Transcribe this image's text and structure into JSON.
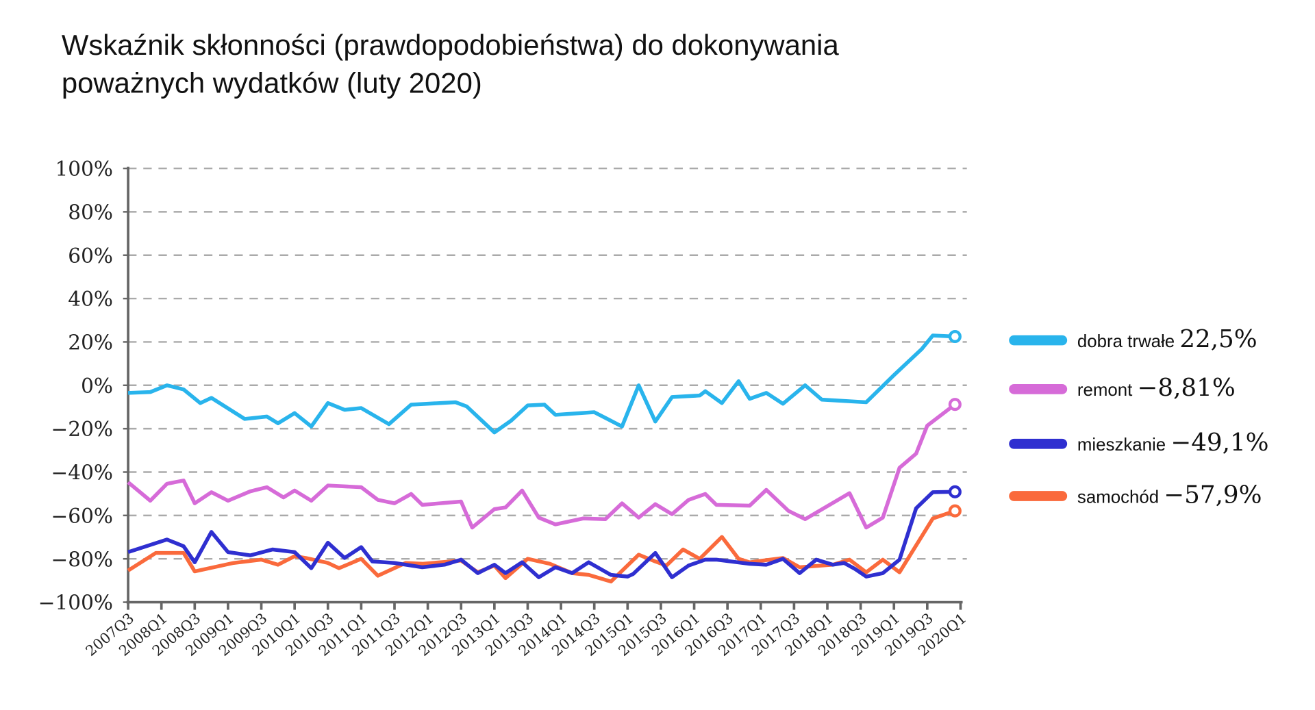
{
  "chart_data": {
    "type": "line",
    "title": "Wskaźnik skłonności (prawdopodobieństwa) do dokonywania poważnych wydatków (luty 2020)",
    "title_lines": [
      "Wskaźnik skłonności (prawdopodobieństwa) do dokonywania",
      "poważnych wydatków (luty 2020)"
    ],
    "xlabel": "",
    "ylabel": "",
    "ylim": [
      -100,
      100
    ],
    "xlim": [
      "2007-07",
      "2020-01"
    ],
    "grid": true,
    "grid_style": "dashed horizontal",
    "legend_placement": "right",
    "y_ticks": [
      100,
      80,
      60,
      40,
      20,
      0,
      -20,
      -40,
      -60,
      -80,
      -100
    ],
    "y_tick_labels": [
      "100%",
      "80%",
      "60%",
      "40%",
      "20%",
      "0%",
      "−20%",
      "−40%",
      "−60%",
      "−80%",
      "−100%"
    ],
    "x_tick_labels": [
      "2007Q3",
      "2008Q1",
      "2008Q3",
      "2009Q1",
      "2009Q3",
      "2010Q1",
      "2010Q3",
      "2011Q1",
      "2011Q3",
      "2012Q1",
      "2012Q3",
      "2013Q1",
      "2013Q3",
      "2014Q1",
      "2014Q3",
      "2015Q1",
      "2015Q3",
      "2016Q1",
      "2016Q3",
      "2017Q1",
      "2017Q3",
      "2018Q1",
      "2018Q3",
      "2019Q1",
      "2019Q3",
      "2020Q1"
    ],
    "series": [
      {
        "name": "dobra trwałe",
        "last_value_label": "22,5%",
        "color": "#29b4ec",
        "x": [
          "2007-07",
          "2007-11",
          "2008-02",
          "2008-05",
          "2008-08",
          "2008-10",
          "2009-04",
          "2009-08",
          "2009-10",
          "2010-01",
          "2010-04",
          "2010-07",
          "2010-10",
          "2011-01",
          "2011-06",
          "2011-10",
          "2012-06",
          "2012-08",
          "2013-01",
          "2013-04",
          "2013-07",
          "2013-10",
          "2013-12",
          "2014-07",
          "2014-12",
          "2015-03",
          "2015-06",
          "2015-09",
          "2016-02",
          "2016-03",
          "2016-06",
          "2016-09",
          "2016-11",
          "2017-02",
          "2017-05",
          "2017-09",
          "2017-12",
          "2018-08",
          "2019-01",
          "2019-06",
          "2019-08",
          "2019-12"
        ],
        "y": [
          -3.5,
          -3.1,
          0,
          -1.9,
          -8.2,
          -5.8,
          -15.5,
          -14.4,
          -17.5,
          -12.8,
          -19,
          -8.2,
          -11.3,
          -10.5,
          -17.9,
          -8.9,
          -7.8,
          -9.7,
          -21.7,
          -16.3,
          -9.3,
          -8.9,
          -13.6,
          -12.4,
          -19,
          0,
          -16.7,
          -5.4,
          -4.7,
          -2.7,
          -8.2,
          1.9,
          -6.2,
          -3.5,
          -8.5,
          0,
          -6.6,
          -7.8,
          4.7,
          16.7,
          23,
          22.5
        ]
      },
      {
        "name": "remont",
        "last_value_label": "−8,81%",
        "color": "#d66bd8",
        "x": [
          "2007-07",
          "2007-11",
          "2008-02",
          "2008-05",
          "2008-07",
          "2008-10",
          "2009-01",
          "2009-05",
          "2009-08",
          "2009-11",
          "2010-01",
          "2010-04",
          "2010-07",
          "2011-01",
          "2011-04",
          "2011-07",
          "2011-10",
          "2011-12",
          "2012-07",
          "2012-09",
          "2013-01",
          "2013-03",
          "2013-06",
          "2013-09",
          "2013-12",
          "2014-05",
          "2014-09",
          "2014-12",
          "2015-03",
          "2015-06",
          "2015-09",
          "2015-12",
          "2016-03",
          "2016-05",
          "2016-11",
          "2017-02",
          "2017-06",
          "2017-09",
          "2018-05",
          "2018-08",
          "2018-11",
          "2019-02",
          "2019-05",
          "2019-07",
          "2019-12"
        ],
        "y": [
          -44.7,
          -53.2,
          -45.4,
          -43.9,
          -54.4,
          -49.3,
          -53.2,
          -48.9,
          -47,
          -51.7,
          -48.5,
          -53.2,
          -46.2,
          -47,
          -52.8,
          -54.4,
          -50.1,
          -55.1,
          -53.6,
          -65.6,
          -57.1,
          -56.3,
          -48.5,
          -61,
          -64.1,
          -61.4,
          -61.7,
          -54.4,
          -61,
          -54.8,
          -59.4,
          -52.8,
          -50.1,
          -55.1,
          -55.5,
          -48.2,
          -57.9,
          -61.7,
          -49.7,
          -65.6,
          -61,
          -38,
          -31.5,
          -18.6,
          -8.81
        ]
      },
      {
        "name": "mieszkanie",
        "last_value_label": "−49,1%",
        "color": "#2f2fd0",
        "x": [
          "2007-07",
          "2008-02",
          "2008-05",
          "2008-07",
          "2008-10",
          "2009-01",
          "2009-05",
          "2009-09",
          "2010-01",
          "2010-04",
          "2010-07",
          "2010-10",
          "2011-01",
          "2011-03",
          "2011-07",
          "2011-12",
          "2012-04",
          "2012-07",
          "2012-10",
          "2013-01",
          "2013-03",
          "2013-06",
          "2013-09",
          "2013-12",
          "2014-03",
          "2014-06",
          "2014-10",
          "2015-01",
          "2015-02",
          "2015-06",
          "2015-09",
          "2015-12",
          "2016-03",
          "2016-05",
          "2016-11",
          "2017-02",
          "2017-05",
          "2017-08",
          "2017-11",
          "2018-02",
          "2018-04",
          "2018-06",
          "2018-08",
          "2018-11",
          "2019-02",
          "2019-05",
          "2019-08",
          "2019-12"
        ],
        "y": [
          -76.9,
          -71.1,
          -74.2,
          -81.6,
          -67.6,
          -76.9,
          -78.4,
          -75.7,
          -76.9,
          -84.3,
          -72.6,
          -79.6,
          -74.6,
          -81.2,
          -81.9,
          -83.9,
          -82.7,
          -80.4,
          -86.6,
          -82.7,
          -86.6,
          -81.6,
          -88.5,
          -83.9,
          -86.6,
          -81.6,
          -87.4,
          -88.2,
          -87,
          -77.3,
          -88.5,
          -83.1,
          -80.4,
          -80.4,
          -82.3,
          -82.7,
          -80,
          -86.6,
          -80.4,
          -82.7,
          -81.9,
          -84.7,
          -88.2,
          -86.6,
          -80.4,
          -56.7,
          -49.3,
          -49.1
        ]
      },
      {
        "name": "samochód",
        "last_value_label": "−57,9%",
        "color": "#fa6a3c",
        "x": [
          "2007-07",
          "2007-12",
          "2008-05",
          "2008-07",
          "2009-02",
          "2009-07",
          "2009-10",
          "2010-01",
          "2010-03",
          "2010-07",
          "2010-09",
          "2011-01",
          "2011-04",
          "2011-09",
          "2011-12",
          "2012-07",
          "2012-10",
          "2013-01",
          "2013-03",
          "2013-07",
          "2013-11",
          "2014-03",
          "2014-06",
          "2014-10",
          "2015-03",
          "2015-06",
          "2015-08",
          "2015-11",
          "2016-02",
          "2016-06",
          "2016-09",
          "2016-11",
          "2017-05",
          "2017-08",
          "2018-02",
          "2018-05",
          "2018-08",
          "2018-11",
          "2019-02",
          "2019-08",
          "2019-12"
        ],
        "y": [
          -85.4,
          -77.3,
          -77.3,
          -85.8,
          -81.9,
          -80.4,
          -82.7,
          -78.8,
          -79.6,
          -81.9,
          -84.3,
          -80,
          -87.8,
          -81.9,
          -82.3,
          -80.8,
          -86.2,
          -83.1,
          -88.9,
          -80,
          -82.3,
          -86.6,
          -87.4,
          -90.5,
          -78.1,
          -81.2,
          -83.1,
          -75.7,
          -80,
          -69.9,
          -80,
          -81.6,
          -79.6,
          -83.9,
          -82.7,
          -80.4,
          -86.2,
          -80.4,
          -86.2,
          -61.4,
          -57.9
        ]
      }
    ]
  }
}
